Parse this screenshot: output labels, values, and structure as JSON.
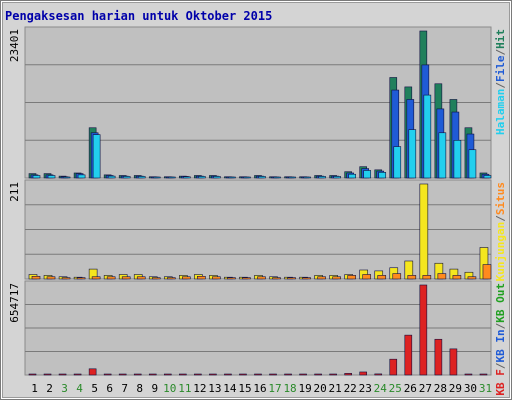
{
  "chart_data": {
    "type": "bar",
    "title": "Pengaksesan harian untuk Oktober 2015",
    "categories": [
      "1",
      "2",
      "3",
      "4",
      "5",
      "6",
      "7",
      "8",
      "9",
      "10",
      "11",
      "12",
      "13",
      "14",
      "15",
      "16",
      "17",
      "18",
      "19",
      "20",
      "21",
      "22",
      "23",
      "24",
      "25",
      "26",
      "27",
      "28",
      "29",
      "30",
      "31"
    ],
    "weekend_days": [
      3,
      4,
      10,
      11,
      17,
      18,
      24,
      25,
      31
    ],
    "colors": {
      "hits": "#20805c",
      "files": "#1f5bd6",
      "pages": "#22cfee",
      "visits": "#f5e61e",
      "sites": "#ff8a1e",
      "kb_f": "#dd2222",
      "weekday_label": "#000000",
      "weekend_label": "#2a8a2a"
    },
    "panels": [
      {
        "name": "hits-files-pages",
        "ymax_label": "23401",
        "ylim": [
          0,
          23401
        ],
        "legend": [
          {
            "text": "Halaman",
            "color": "#22cfee"
          },
          {
            "text": "/",
            "color": "#666666"
          },
          {
            "text": "File",
            "color": "#1f5bd6"
          },
          {
            "text": "/",
            "color": "#666666"
          },
          {
            "text": "Hit",
            "color": "#20805c"
          }
        ],
        "series": [
          {
            "name": "Hit",
            "color": "#20805c",
            "values": [
              700,
              700,
              300,
              800,
              8000,
              500,
              400,
              400,
              200,
              200,
              300,
              400,
              400,
              200,
              200,
              400,
              200,
              200,
              200,
              400,
              400,
              1000,
              1800,
              1300,
              16000,
              14500,
              23401,
              15000,
              12500,
              8000,
              800
            ]
          },
          {
            "name": "File",
            "color": "#1f5bd6",
            "values": [
              500,
              500,
              200,
              700,
              7200,
              400,
              300,
              300,
              150,
              150,
              250,
              300,
              300,
              150,
              150,
              300,
              150,
              150,
              150,
              300,
              300,
              800,
              1500,
              1100,
              14000,
              12500,
              18000,
              11000,
              10500,
              7000,
              600
            ]
          },
          {
            "name": "Halaman",
            "color": "#22cfee",
            "values": [
              400,
              400,
              150,
              500,
              6900,
              300,
              250,
              250,
              100,
              100,
              200,
              250,
              250,
              100,
              100,
              250,
              100,
              100,
              100,
              250,
              250,
              600,
              1200,
              900,
              5000,
              7700,
              13200,
              7200,
              6000,
              4500,
              400
            ]
          }
        ]
      },
      {
        "name": "visits-sites",
        "ymax_label": "211",
        "ylim": [
          0,
          211
        ],
        "legend": [
          {
            "text": "Kunjungan",
            "color": "#f5e61e"
          },
          {
            "text": "/",
            "color": "#666666"
          },
          {
            "text": "Situs",
            "color": "#ff8a1e"
          }
        ],
        "series": [
          {
            "name": "Kunjungan",
            "color": "#f5e61e",
            "values": [
              10,
              8,
              5,
              4,
              22,
              8,
              10,
              10,
              5,
              5,
              8,
              10,
              8,
              4,
              4,
              8,
              5,
              4,
              4,
              8,
              8,
              10,
              20,
              18,
              25,
              40,
              211,
              35,
              22,
              15,
              70
            ]
          },
          {
            "name": "Situs",
            "color": "#ff8a1e",
            "values": [
              6,
              5,
              3,
              3,
              5,
              5,
              5,
              5,
              3,
              3,
              5,
              6,
              5,
              3,
              3,
              5,
              3,
              3,
              3,
              5,
              5,
              8,
              10,
              8,
              12,
              8,
              8,
              12,
              8,
              5,
              32
            ]
          }
        ]
      },
      {
        "name": "kbytes",
        "ymax_label": "654717",
        "ylim": [
          0,
          654717
        ],
        "legend": [
          {
            "text": "KB F",
            "color": "#dd2222"
          },
          {
            "text": "/",
            "color": "#666666"
          },
          {
            "text": "KB In",
            "color": "#1f5bd6"
          },
          {
            "text": "/",
            "color": "#666666"
          },
          {
            "text": "KB Out",
            "color": "#20a020"
          }
        ],
        "series": [
          {
            "name": "KB F",
            "color": "#dd2222",
            "values": [
              2000,
              2000,
              1000,
              2000,
              45000,
              1500,
              1500,
              1500,
              1000,
              1000,
              1500,
              1500,
              1500,
              1000,
              1000,
              1500,
              1000,
              1000,
              1000,
              1500,
              1500,
              12000,
              22000,
              8000,
              115000,
              290000,
              654717,
              260000,
              190000,
              6000,
              3000
            ]
          }
        ]
      }
    ]
  }
}
